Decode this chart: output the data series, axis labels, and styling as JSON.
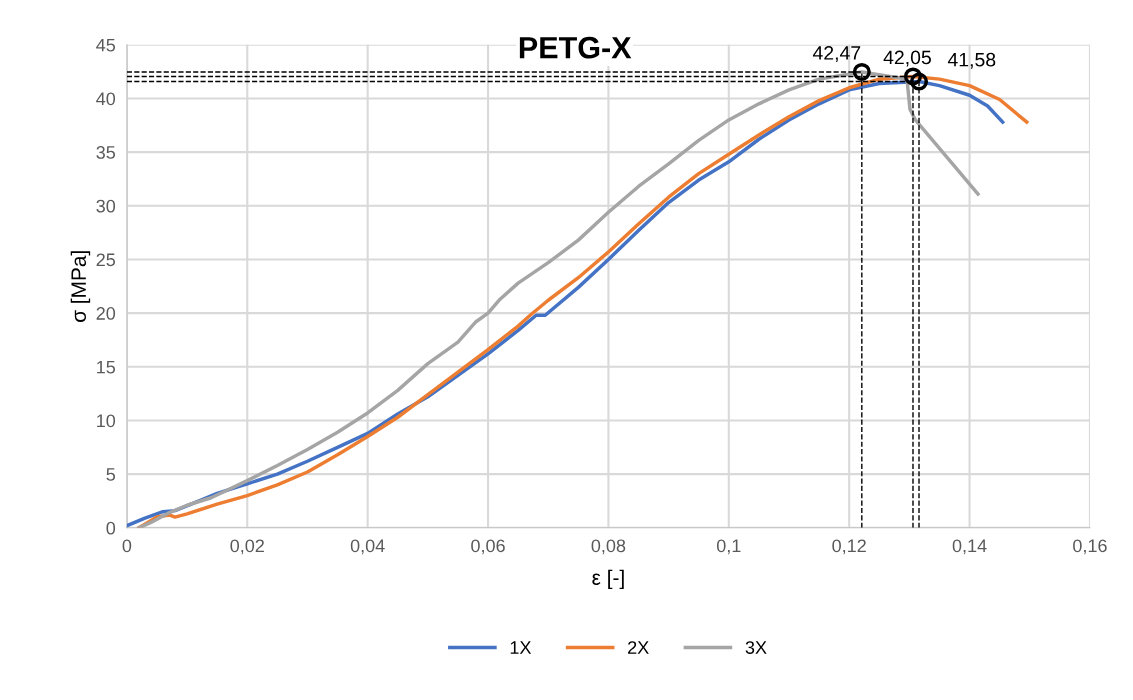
{
  "chart_data": {
    "type": "line",
    "title": "PETG-X",
    "xlabel": "ε [-]",
    "ylabel": "σ [MPa]",
    "xlim": [
      0,
      0.16
    ],
    "xticks": [
      {
        "value": 0,
        "label": "0"
      },
      {
        "value": 0.02,
        "label": "0,02"
      },
      {
        "value": 0.04,
        "label": "0,04"
      },
      {
        "value": 0.06,
        "label": "0,06"
      },
      {
        "value": 0.08,
        "label": "0,08"
      },
      {
        "value": 0.1,
        "label": "0,1"
      },
      {
        "value": 0.12,
        "label": "0,12"
      },
      {
        "value": 0.14,
        "label": "0,14"
      },
      {
        "value": 0.16,
        "label": "0,16"
      }
    ],
    "ylim": [
      0,
      45
    ],
    "yticks": [
      0,
      5,
      10,
      15,
      20,
      25,
      30,
      35,
      40,
      45
    ],
    "grid": true,
    "legend": "bottom",
    "marker": "none",
    "line_style": "solid",
    "series": [
      {
        "name": "1X",
        "color": "#4472c4",
        "x": [
          0,
          0.003,
          0.006,
          0.008,
          0.012,
          0.015,
          0.02,
          0.025,
          0.03,
          0.035,
          0.04,
          0.045,
          0.05,
          0.055,
          0.06,
          0.065,
          0.068,
          0.0695,
          0.075,
          0.08,
          0.085,
          0.09,
          0.095,
          0.1,
          0.105,
          0.11,
          0.115,
          0.12,
          0.125,
          0.1316,
          0.135,
          0.14,
          0.143,
          0.1455
        ],
        "values": [
          0.2,
          0.9,
          1.5,
          1.6,
          2.5,
          3.2,
          4.1,
          5.0,
          6.2,
          7.5,
          8.8,
          10.6,
          12.2,
          14.2,
          16.2,
          18.4,
          19.8,
          19.8,
          22.4,
          25.0,
          27.7,
          30.3,
          32.4,
          34.1,
          36.2,
          38.0,
          39.5,
          40.8,
          41.4,
          41.58,
          41.2,
          40.3,
          39.3,
          37.8
        ]
      },
      {
        "name": "2X",
        "color": "#ed7d31",
        "x": [
          0.002,
          0.005,
          0.007,
          0.008,
          0.01,
          0.015,
          0.02,
          0.025,
          0.03,
          0.035,
          0.04,
          0.045,
          0.05,
          0.055,
          0.06,
          0.065,
          0.067,
          0.07,
          0.075,
          0.08,
          0.085,
          0.09,
          0.095,
          0.1,
          0.105,
          0.11,
          0.115,
          0.12,
          0.125,
          0.1306,
          0.135,
          0.14,
          0.145,
          0.1495
        ],
        "values": [
          0,
          1.0,
          1.2,
          1.0,
          1.3,
          2.2,
          3.0,
          4.0,
          5.2,
          6.8,
          8.5,
          10.3,
          12.4,
          14.5,
          16.6,
          18.8,
          19.8,
          21.2,
          23.3,
          25.7,
          28.3,
          30.8,
          33.0,
          34.8,
          36.6,
          38.3,
          39.8,
          41.0,
          41.8,
          42.05,
          41.8,
          41.2,
          39.9,
          37.8
        ]
      },
      {
        "name": "3X",
        "color": "#a5a5a5",
        "x": [
          0.002,
          0.004,
          0.007,
          0.01,
          0.014,
          0.02,
          0.025,
          0.03,
          0.035,
          0.04,
          0.045,
          0.05,
          0.055,
          0.058,
          0.06,
          0.062,
          0.065,
          0.07,
          0.075,
          0.08,
          0.085,
          0.09,
          0.095,
          0.1,
          0.105,
          0.11,
          0.115,
          0.1221,
          0.1296,
          0.1301,
          0.131,
          0.1414
        ],
        "values": [
          0,
          0.5,
          1.4,
          2.1,
          2.8,
          4.4,
          5.8,
          7.3,
          8.9,
          10.7,
          12.8,
          15.3,
          17.3,
          19.2,
          20.0,
          21.3,
          22.8,
          24.7,
          26.8,
          29.4,
          31.8,
          33.9,
          36.1,
          38.0,
          39.5,
          40.8,
          41.8,
          42.47,
          41.8,
          39.0,
          38.0,
          31.1
        ]
      },
      {
        "type": "scatter",
        "color": "#000000",
        "marker": "circle",
        "line_style": "dashed",
        "x": [
          0.1221,
          0.1306,
          0.1316
        ],
        "values": [
          42.47,
          42.05,
          41.58
        ],
        "value_labels": [
          "42,47",
          "42,05",
          "41,58"
        ]
      }
    ]
  }
}
